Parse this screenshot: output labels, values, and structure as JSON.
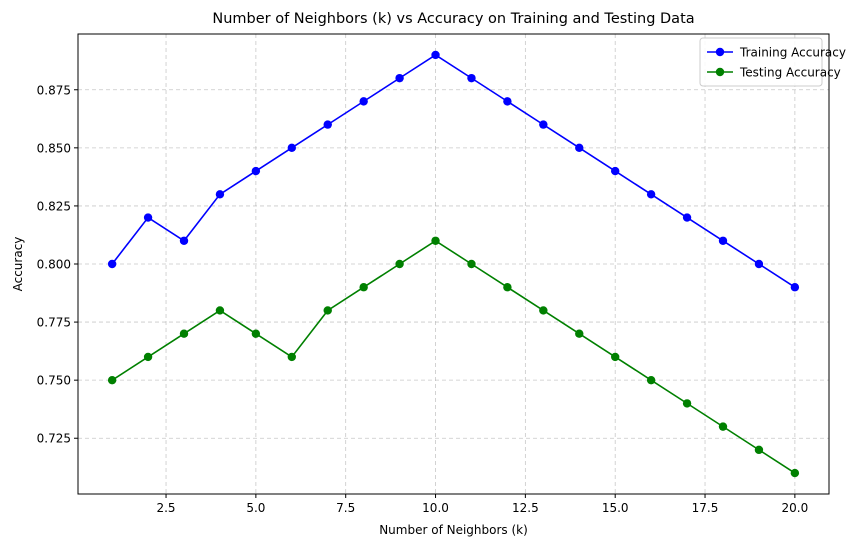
{
  "chart_data": {
    "type": "line",
    "title": "Number of Neighbors (k) vs Accuracy on Training and Testing Data",
    "xlabel": "Number of Neighbors (k)",
    "ylabel": "Accuracy",
    "x": [
      1,
      2,
      3,
      4,
      5,
      6,
      7,
      8,
      9,
      10,
      11,
      12,
      13,
      14,
      15,
      16,
      17,
      18,
      19,
      20
    ],
    "xlim": [
      0.05,
      20.95
    ],
    "ylim": [
      0.701,
      0.899
    ],
    "xticks": [
      2.5,
      5.0,
      7.5,
      10.0,
      12.5,
      15.0,
      17.5,
      20.0
    ],
    "xtick_labels": [
      "2.5",
      "5.0",
      "7.5",
      "10.0",
      "12.5",
      "15.0",
      "17.5",
      "20.0"
    ],
    "yticks": [
      0.725,
      0.75,
      0.775,
      0.8,
      0.825,
      0.85,
      0.875
    ],
    "ytick_labels": [
      "0.725",
      "0.750",
      "0.775",
      "0.800",
      "0.825",
      "0.850",
      "0.875"
    ],
    "grid": true,
    "legend_position": "top-right",
    "series": [
      {
        "name": "Training Accuracy",
        "color": "#0000ff",
        "marker": "circle",
        "values": [
          0.8,
          0.82,
          0.81,
          0.83,
          0.84,
          0.85,
          0.86,
          0.87,
          0.88,
          0.89,
          0.88,
          0.87,
          0.86,
          0.85,
          0.84,
          0.83,
          0.82,
          0.81,
          0.8,
          0.79
        ]
      },
      {
        "name": "Testing Accuracy",
        "color": "#008000",
        "marker": "circle",
        "values": [
          0.75,
          0.76,
          0.77,
          0.78,
          0.77,
          0.76,
          0.78,
          0.79,
          0.8,
          0.81,
          0.8,
          0.79,
          0.78,
          0.77,
          0.76,
          0.75,
          0.74,
          0.73,
          0.72,
          0.71
        ]
      }
    ]
  }
}
